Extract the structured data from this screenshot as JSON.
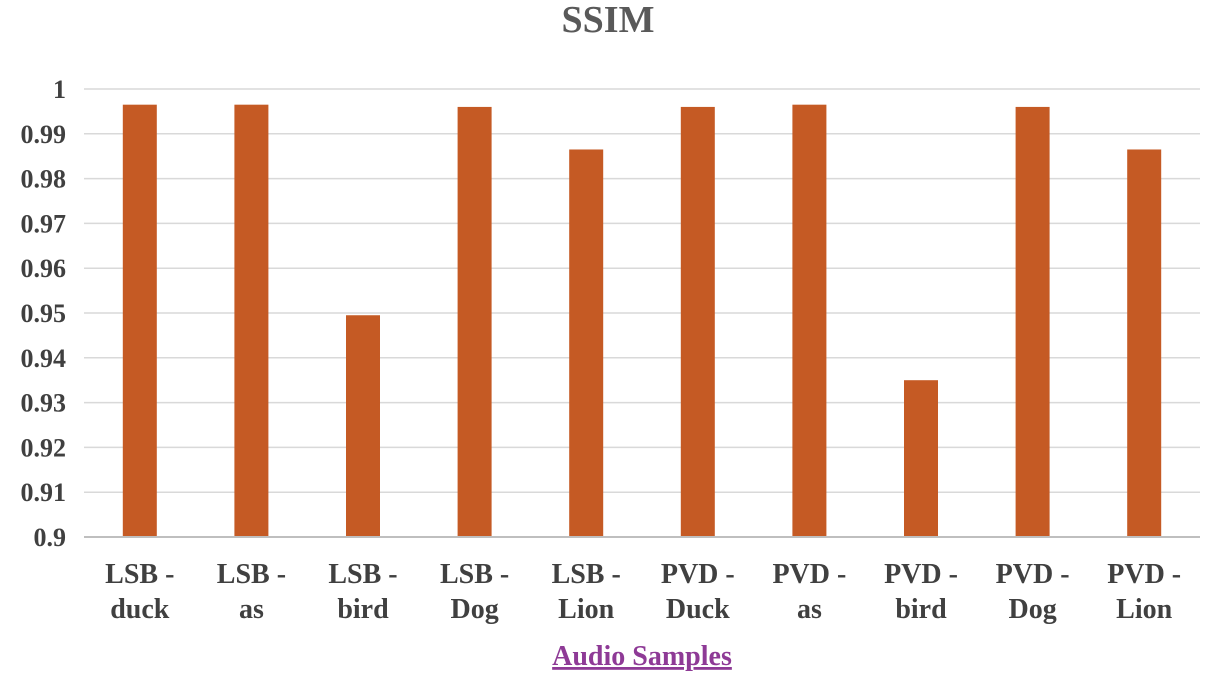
{
  "chart_data": {
    "type": "bar",
    "title": "SSIM",
    "xlabel": "Audio Samples",
    "ylabel": "",
    "categories": [
      [
        "LSB -",
        "duck"
      ],
      [
        "LSB -",
        "as"
      ],
      [
        "LSB -",
        "bird"
      ],
      [
        "LSB -",
        "Dog"
      ],
      [
        "LSB -",
        "Lion"
      ],
      [
        "PVD -",
        "Duck"
      ],
      [
        "PVD -",
        "as"
      ],
      [
        "PVD -",
        "bird"
      ],
      [
        "PVD -",
        "Dog"
      ],
      [
        "PVD -",
        "Lion"
      ]
    ],
    "values": [
      0.9965,
      0.9965,
      0.9495,
      0.996,
      0.9865,
      0.996,
      0.9965,
      0.935,
      0.996,
      0.9865
    ],
    "ylim": [
      0.9,
      1
    ],
    "yticks": [
      0.9,
      0.91,
      0.92,
      0.93,
      0.94,
      0.95,
      0.96,
      0.97,
      0.98,
      0.99,
      1
    ],
    "ytick_labels": [
      "0.9",
      "0.91",
      "0.92",
      "0.93",
      "0.94",
      "0.95",
      "0.96",
      "0.97",
      "0.98",
      "0.99",
      "1"
    ],
    "grid": true,
    "legend": "none",
    "colors": {
      "bar": "#C55A24",
      "grid": "#d9d9d9",
      "axis": "#bfbfbf",
      "xlabel": "#8E3A96"
    }
  }
}
